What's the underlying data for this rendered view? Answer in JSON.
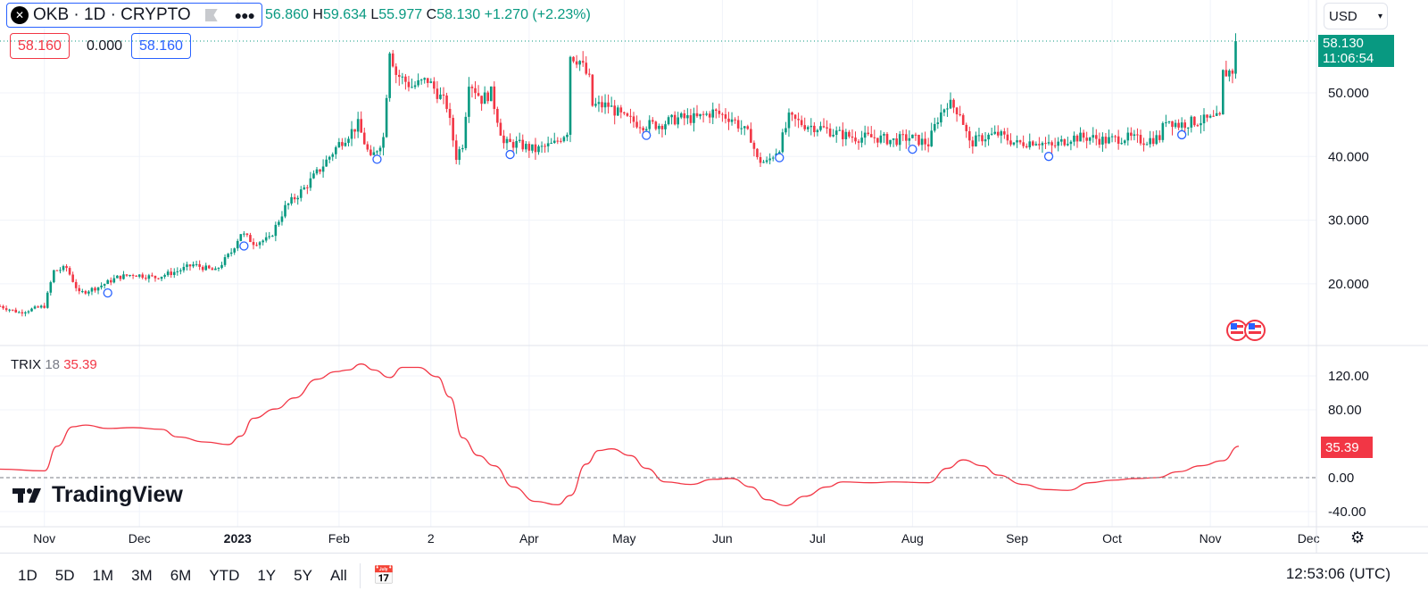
{
  "header": {
    "symbol": "OKB · 1D · CRYPTO",
    "open": "56.860",
    "high_label": "H",
    "high": "59.634",
    "low_label": "L",
    "low": "55.977",
    "close_label": "C",
    "close": "58.130",
    "change": "+1.270 (+2.23%)"
  },
  "order": {
    "sell": "58.160",
    "spread": "0.000",
    "buy": "58.160"
  },
  "currency": "USD",
  "price_label": {
    "price": "58.130",
    "countdown": "11:06:54"
  },
  "indicator": {
    "name": "TRIX",
    "period": "18",
    "value": "35.39"
  },
  "brand": "TradingView",
  "ranges": [
    "1D",
    "5D",
    "1M",
    "3M",
    "6M",
    "YTD",
    "1Y",
    "5Y",
    "All"
  ],
  "clock": "12:53:06 (UTC)",
  "colors": {
    "up": "#089981",
    "down": "#f23645",
    "trix": "#f23645",
    "accent": "#2962ff"
  },
  "chart_data": {
    "type": "candlestick",
    "title": "OKB · 1D · CRYPTO",
    "x_unit": "days since 2022-10-17",
    "price_ticks": [
      "50.000",
      "40.000",
      "30.000",
      "20.000"
    ],
    "price_tick_values": [
      50,
      40,
      30,
      20
    ],
    "trix_ticks": [
      "120.00",
      "80.00",
      "0.00",
      "-40.00"
    ],
    "trix_tick_values": [
      120,
      80,
      0,
      -40
    ],
    "time_ticks": [
      {
        "label": "Nov",
        "day": 14,
        "bold": false
      },
      {
        "label": "Dec",
        "day": 44
      },
      {
        "label": "2023",
        "day": 75,
        "bold": true
      },
      {
        "label": "Feb",
        "day": 107
      },
      {
        "label": "2",
        "day": 136
      },
      {
        "label": "Apr",
        "day": 167
      },
      {
        "label": "May",
        "day": 197
      },
      {
        "label": "Jun",
        "day": 228
      },
      {
        "label": "Jul",
        "day": 258
      },
      {
        "label": "Aug",
        "day": 288
      },
      {
        "label": "Sep",
        "day": 321
      },
      {
        "label": "Oct",
        "day": 351
      },
      {
        "label": "Nov",
        "day": 382
      },
      {
        "label": "Dec",
        "day": 413
      }
    ],
    "close_anchors": [
      [
        0,
        16.5
      ],
      [
        6,
        15.5
      ],
      [
        14,
        16.5
      ],
      [
        17,
        22
      ],
      [
        21,
        22.5
      ],
      [
        25,
        18.5
      ],
      [
        31,
        19.5
      ],
      [
        37,
        21
      ],
      [
        42,
        21.5
      ],
      [
        49,
        21
      ],
      [
        56,
        22
      ],
      [
        61,
        23
      ],
      [
        68,
        22
      ],
      [
        73,
        25
      ],
      [
        76,
        28
      ],
      [
        80,
        26.5
      ],
      [
        85,
        27
      ],
      [
        90,
        32
      ],
      [
        96,
        35
      ],
      [
        101,
        38
      ],
      [
        107,
        42
      ],
      [
        113,
        45
      ],
      [
        117,
        39.5
      ],
      [
        121,
        43
      ],
      [
        123,
        57
      ],
      [
        125,
        53
      ],
      [
        130,
        51
      ],
      [
        135,
        52
      ],
      [
        141,
        48
      ],
      [
        144,
        40
      ],
      [
        146,
        42
      ],
      [
        148,
        52
      ],
      [
        152,
        49
      ],
      [
        155,
        50
      ],
      [
        159,
        42
      ],
      [
        163,
        42
      ],
      [
        169,
        41
      ],
      [
        175,
        42
      ],
      [
        179,
        44
      ],
      [
        180,
        56
      ],
      [
        183,
        55
      ],
      [
        186,
        52
      ],
      [
        187,
        48
      ],
      [
        192,
        48
      ],
      [
        197,
        46
      ],
      [
        203,
        45
      ],
      [
        208,
        45
      ],
      [
        214,
        46
      ],
      [
        220,
        46
      ],
      [
        225,
        47
      ],
      [
        231,
        46
      ],
      [
        237,
        43
      ],
      [
        239,
        39.5
      ],
      [
        242,
        39
      ],
      [
        246,
        41.5
      ],
      [
        249,
        46
      ],
      [
        254,
        45
      ],
      [
        259,
        44.5
      ],
      [
        265,
        43.5
      ],
      [
        270,
        43
      ],
      [
        276,
        43
      ],
      [
        282,
        42.5
      ],
      [
        287,
        43
      ],
      [
        293,
        42
      ],
      [
        296,
        46
      ],
      [
        299,
        48.5
      ],
      [
        303,
        47
      ],
      [
        306,
        42
      ],
      [
        310,
        43
      ],
      [
        315,
        43.5
      ],
      [
        321,
        42
      ],
      [
        327,
        42.5
      ],
      [
        332,
        41.5
      ],
      [
        338,
        43
      ],
      [
        344,
        43
      ],
      [
        349,
        42.5
      ],
      [
        355,
        43
      ],
      [
        361,
        42.5
      ],
      [
        366,
        43
      ],
      [
        368,
        46
      ],
      [
        372,
        45
      ],
      [
        377,
        45.5
      ],
      [
        385,
        46
      ],
      [
        386,
        53
      ],
      [
        389,
        53.5
      ],
      [
        390,
        58.13
      ]
    ],
    "trix": [
      [
        0,
        10
      ],
      [
        14,
        8
      ],
      [
        18,
        37
      ],
      [
        23,
        60
      ],
      [
        27,
        62
      ],
      [
        34,
        58
      ],
      [
        42,
        59
      ],
      [
        51,
        57
      ],
      [
        56,
        48
      ],
      [
        65,
        42
      ],
      [
        72,
        39
      ],
      [
        76,
        49
      ],
      [
        80,
        70
      ],
      [
        87,
        81
      ],
      [
        93,
        94
      ],
      [
        100,
        116
      ],
      [
        106,
        125
      ],
      [
        110,
        127
      ],
      [
        114,
        134
      ],
      [
        118,
        127
      ],
      [
        123,
        118
      ],
      [
        127,
        130
      ],
      [
        132,
        130
      ],
      [
        138,
        119
      ],
      [
        142,
        95
      ],
      [
        146,
        47
      ],
      [
        151,
        26
      ],
      [
        156,
        14
      ],
      [
        162,
        -11
      ],
      [
        169,
        -28
      ],
      [
        176,
        -32
      ],
      [
        180,
        -21
      ],
      [
        185,
        16
      ],
      [
        189,
        32
      ],
      [
        193,
        34
      ],
      [
        199,
        26
      ],
      [
        204,
        11
      ],
      [
        210,
        -5
      ],
      [
        218,
        -8
      ],
      [
        225,
        -2
      ],
      [
        231,
        -1
      ],
      [
        237,
        -11
      ],
      [
        242,
        -26
      ],
      [
        248,
        -33
      ],
      [
        254,
        -22
      ],
      [
        261,
        -11
      ],
      [
        266,
        -5
      ],
      [
        275,
        -6
      ],
      [
        282,
        -5
      ],
      [
        293,
        -6
      ],
      [
        299,
        11
      ],
      [
        304,
        21
      ],
      [
        310,
        14
      ],
      [
        315,
        3
      ],
      [
        323,
        -8
      ],
      [
        330,
        -14
      ],
      [
        337,
        -15
      ],
      [
        344,
        -6
      ],
      [
        351,
        -3
      ],
      [
        359,
        -1
      ],
      [
        365,
        0
      ],
      [
        372,
        7
      ],
      [
        379,
        14
      ],
      [
        386,
        20
      ],
      [
        391,
        37
      ]
    ],
    "event_days": [
      34,
      77,
      119,
      161,
      204,
      246,
      288,
      331,
      373
    ]
  }
}
